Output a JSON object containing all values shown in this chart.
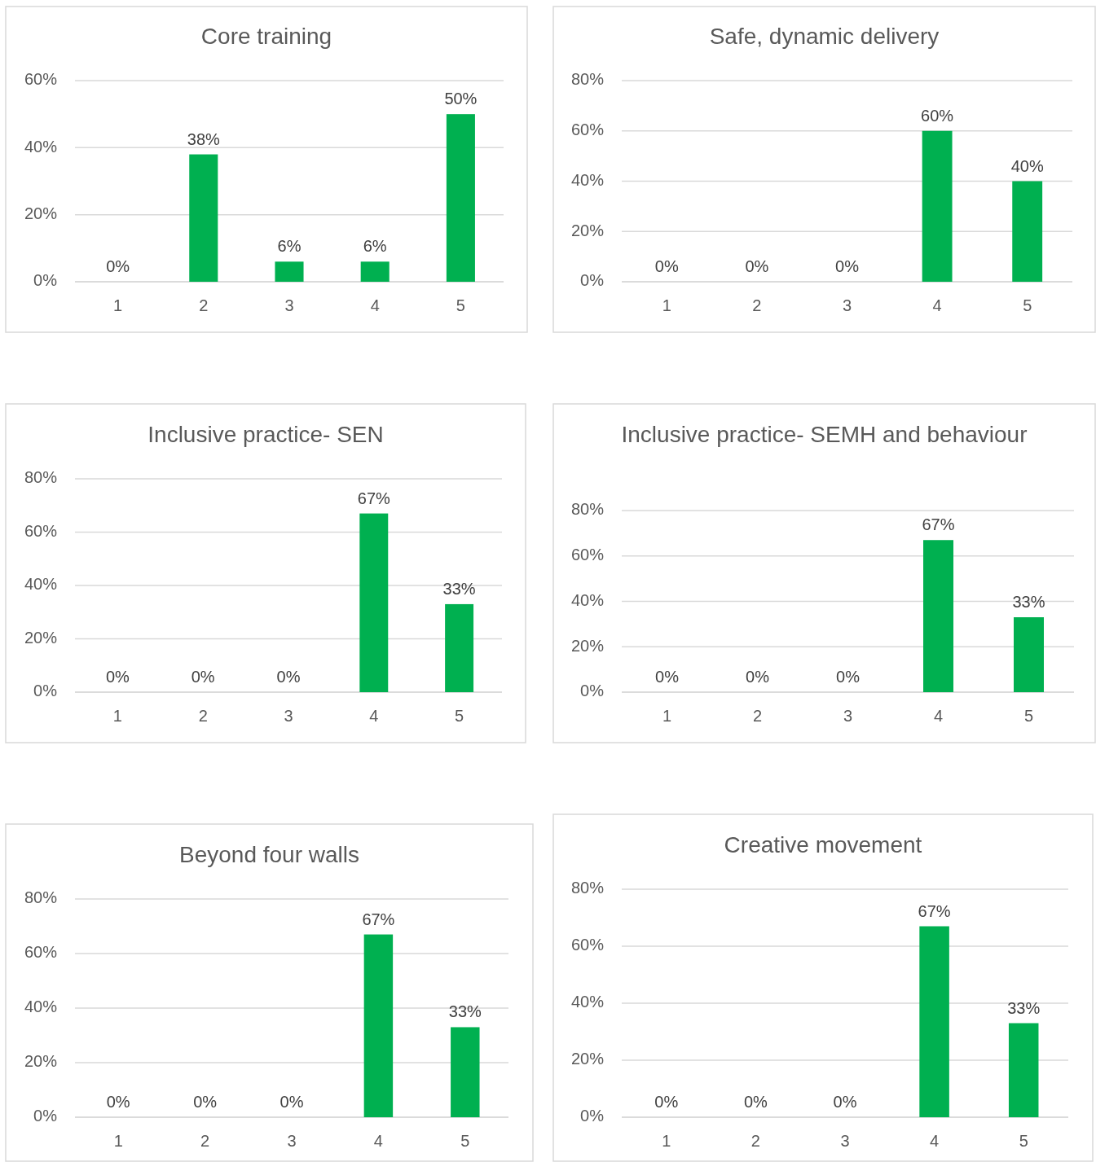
{
  "chart_data": [
    {
      "type": "bar",
      "title": "Core training",
      "categories": [
        "1",
        "2",
        "3",
        "4",
        "5"
      ],
      "values": [
        0,
        38,
        6,
        6,
        50
      ],
      "value_labels": [
        "0%",
        "38%",
        "6%",
        "6%",
        "50%"
      ],
      "color": "#00b050",
      "ylim": [
        0,
        60
      ],
      "yticks": [
        {
          "value": 0,
          "label": "0%"
        },
        {
          "value": 20,
          "label": "20%"
        },
        {
          "value": 40,
          "label": "40%"
        },
        {
          "value": 60,
          "label": "60%"
        }
      ],
      "grid": "y"
    },
    {
      "type": "bar",
      "title": "Safe, dynamic delivery",
      "categories": [
        "1",
        "2",
        "3",
        "4",
        "5"
      ],
      "values": [
        0,
        0,
        0,
        60,
        40
      ],
      "value_labels": [
        "0%",
        "0%",
        "0%",
        "60%",
        "40%"
      ],
      "color": "#00b050",
      "ylim": [
        0,
        80
      ],
      "yticks": [
        {
          "value": 0,
          "label": "0%"
        },
        {
          "value": 20,
          "label": "20%"
        },
        {
          "value": 40,
          "label": "40%"
        },
        {
          "value": 60,
          "label": "60%"
        },
        {
          "value": 80,
          "label": "80%"
        }
      ],
      "grid": "y"
    },
    {
      "type": "bar",
      "title": "Inclusive practice- SEN",
      "categories": [
        "1",
        "2",
        "3",
        "4",
        "5"
      ],
      "values": [
        0,
        0,
        0,
        67,
        33
      ],
      "value_labels": [
        "0%",
        "0%",
        "0%",
        "67%",
        "33%"
      ],
      "color": "#00b050",
      "ylim": [
        0,
        80
      ],
      "yticks": [
        {
          "value": 0,
          "label": "0%"
        },
        {
          "value": 20,
          "label": "20%"
        },
        {
          "value": 40,
          "label": "40%"
        },
        {
          "value": 60,
          "label": "60%"
        },
        {
          "value": 80,
          "label": "80%"
        }
      ],
      "grid": "y"
    },
    {
      "type": "bar",
      "title": "Inclusive practice- SEMH and behaviour",
      "categories": [
        "1",
        "2",
        "3",
        "4",
        "5"
      ],
      "values": [
        0,
        0,
        0,
        67,
        33
      ],
      "value_labels": [
        "0%",
        "0%",
        "0%",
        "67%",
        "33%"
      ],
      "color": "#00b050",
      "ylim": [
        0,
        80
      ],
      "yticks": [
        {
          "value": 0,
          "label": "0%"
        },
        {
          "value": 20,
          "label": "20%"
        },
        {
          "value": 40,
          "label": "40%"
        },
        {
          "value": 60,
          "label": "60%"
        },
        {
          "value": 80,
          "label": "80%"
        }
      ],
      "grid": "y"
    },
    {
      "type": "bar",
      "title": "Beyond four walls",
      "categories": [
        "1",
        "2",
        "3",
        "4",
        "5"
      ],
      "values": [
        0,
        0,
        0,
        67,
        33
      ],
      "value_labels": [
        "0%",
        "0%",
        "0%",
        "67%",
        "33%"
      ],
      "color": "#00b050",
      "ylim": [
        0,
        80
      ],
      "yticks": [
        {
          "value": 0,
          "label": "0%"
        },
        {
          "value": 20,
          "label": "20%"
        },
        {
          "value": 40,
          "label": "40%"
        },
        {
          "value": 60,
          "label": "60%"
        },
        {
          "value": 80,
          "label": "80%"
        }
      ],
      "grid": "y"
    },
    {
      "type": "bar",
      "title": "Creative movement",
      "categories": [
        "1",
        "2",
        "3",
        "4",
        "5"
      ],
      "values": [
        0,
        0,
        0,
        67,
        33
      ],
      "value_labels": [
        "0%",
        "0%",
        "0%",
        "67%",
        "33%"
      ],
      "color": "#00b050",
      "ylim": [
        0,
        80
      ],
      "yticks": [
        {
          "value": 0,
          "label": "0%"
        },
        {
          "value": 20,
          "label": "20%"
        },
        {
          "value": 40,
          "label": "40%"
        },
        {
          "value": 60,
          "label": "60%"
        },
        {
          "value": 80,
          "label": "80%"
        }
      ],
      "grid": "y"
    }
  ]
}
